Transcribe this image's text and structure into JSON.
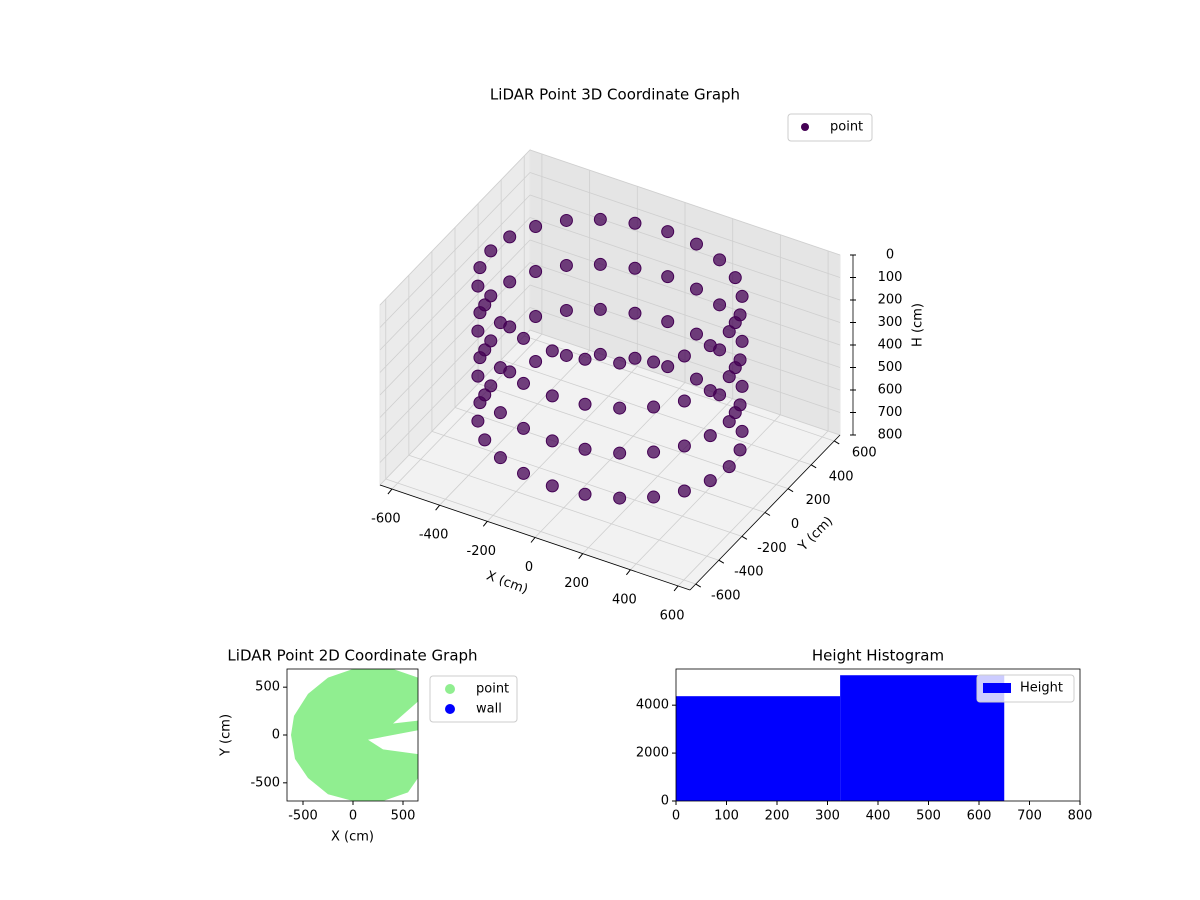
{
  "chart_data": [
    {
      "type": "scatter3d",
      "title": "LiDAR Point 3D Coordinate Graph",
      "xlabel": "X (cm)",
      "ylabel": "Y (cm)",
      "zlabel": "H (cm)",
      "legend": "upper right",
      "xlim": [
        -650,
        650
      ],
      "ylim": [
        -650,
        650
      ],
      "zlim": [
        0,
        800
      ],
      "z_inverted": true,
      "xticks": [
        -600,
        -400,
        -200,
        0,
        200,
        400,
        600
      ],
      "yticks": [
        -600,
        -400,
        -200,
        0,
        200,
        400,
        600
      ],
      "zticks": [
        0,
        100,
        200,
        300,
        400,
        500,
        600,
        700,
        800
      ],
      "series": [
        {
          "name": "point",
          "color": "#440154",
          "x": [
            500,
            483,
            433,
            354,
            250,
            129,
            0,
            -129,
            -250,
            -354,
            -433,
            -483,
            -500,
            -483,
            -433,
            -354,
            -250,
            -129,
            0,
            129,
            250,
            354,
            433,
            483,
            500,
            483,
            433,
            354,
            250,
            129,
            0,
            -129,
            -250,
            -354,
            -433,
            -483,
            -500,
            -483,
            -433,
            -354,
            -250,
            -129,
            0,
            129,
            250,
            354,
            433,
            483,
            500,
            483,
            433,
            354,
            250,
            129,
            0,
            -129,
            -250,
            -354,
            -433,
            -483,
            -500,
            -483,
            -433,
            -354,
            -250,
            -129,
            0,
            129,
            250,
            354,
            433,
            483,
            500,
            483,
            433,
            354,
            250,
            129,
            0,
            -129,
            -250,
            -354,
            -433,
            -483,
            -500,
            -483,
            -433,
            -354,
            -250,
            -129,
            0,
            129,
            250,
            354,
            433,
            483
          ],
          "y": [
            0,
            129,
            250,
            354,
            433,
            483,
            500,
            483,
            433,
            354,
            250,
            129,
            0,
            -129,
            -250,
            -354,
            -433,
            -483,
            -500,
            -483,
            -433,
            -354,
            -250,
            -129,
            0,
            129,
            250,
            354,
            433,
            483,
            500,
            483,
            433,
            354,
            250,
            129,
            0,
            -129,
            -250,
            -354,
            -433,
            -483,
            -500,
            -483,
            -433,
            -354,
            -250,
            -129,
            0,
            129,
            250,
            354,
            433,
            483,
            500,
            483,
            433,
            354,
            250,
            129,
            0,
            -129,
            -250,
            -354,
            -433,
            -483,
            -500,
            -483,
            -433,
            -354,
            -250,
            -129,
            0,
            129,
            250,
            354,
            433,
            483,
            500,
            483,
            433,
            354,
            250,
            129,
            0,
            -129,
            -250,
            -354,
            -433,
            -483,
            -500,
            -483,
            -433,
            -354,
            -250,
            -129
          ],
          "z": [
            50,
            50,
            50,
            50,
            50,
            50,
            50,
            50,
            50,
            50,
            50,
            50,
            50,
            50,
            50,
            50,
            50,
            50,
            50,
            50,
            50,
            50,
            50,
            50,
            250,
            250,
            250,
            250,
            250,
            250,
            250,
            250,
            250,
            250,
            250,
            250,
            250,
            250,
            250,
            250,
            250,
            250,
            250,
            250,
            250,
            250,
            250,
            250,
            450,
            450,
            450,
            450,
            450,
            450,
            450,
            450,
            450,
            450,
            450,
            450,
            450,
            450,
            450,
            450,
            450,
            450,
            450,
            450,
            450,
            450,
            450,
            450,
            650,
            650,
            650,
            650,
            650,
            650,
            650,
            650,
            650,
            650,
            650,
            650,
            650,
            650,
            650,
            650,
            650,
            650,
            650,
            650,
            650,
            650,
            650,
            650
          ]
        }
      ]
    },
    {
      "type": "scatter",
      "title": "LiDAR Point 2D Coordinate Graph",
      "xlabel": "X (cm)",
      "ylabel": "Y (cm)",
      "legend": "outside right",
      "xlim": [
        -660,
        650
      ],
      "ylim": [
        -690,
        690
      ],
      "xticks": [
        -500,
        0,
        500
      ],
      "yticks": [
        -500,
        0,
        500
      ],
      "series": [
        {
          "name": "point",
          "color": "#90ee90",
          "x": [
            -250,
            -450,
            -590,
            -620,
            -580,
            -450,
            -250,
            0,
            300,
            550,
            650,
            650,
            300,
            150,
            650,
            650,
            400,
            650,
            650,
            400,
            0
          ],
          "y": [
            600,
            430,
            200,
            0,
            -250,
            -450,
            -620,
            -690,
            -690,
            -600,
            -450,
            -200,
            -150,
            -50,
            50,
            150,
            120,
            350,
            600,
            690,
            690
          ]
        },
        {
          "name": "wall",
          "color": "#0000ff",
          "x": [],
          "y": []
        }
      ]
    },
    {
      "type": "histogram",
      "title": "Height Histogram",
      "legend": "upper right",
      "xlim": [
        0,
        800
      ],
      "ylim": [
        0,
        5510
      ],
      "xticks": [
        0,
        100,
        200,
        300,
        400,
        500,
        600,
        700,
        800
      ],
      "yticks": [
        0,
        2000,
        4000
      ],
      "series": [
        {
          "name": "Height",
          "color": "#0000ff",
          "bins": [
            0,
            325,
            650
          ],
          "counts": [
            4375,
            5250
          ]
        }
      ]
    }
  ]
}
